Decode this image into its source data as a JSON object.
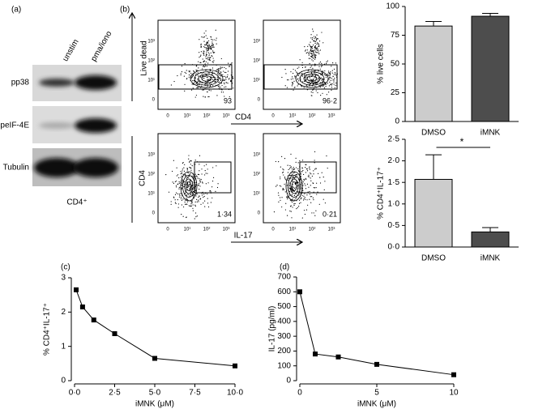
{
  "panel_labels": [
    "(a)",
    "(b)",
    "(c)",
    "(d)"
  ],
  "blot": {
    "lanes": [
      "unstim",
      "pma/iono"
    ],
    "bands": [
      "pp38",
      "peIF-4E",
      "Tubulin"
    ],
    "caption": "CD4⁺"
  },
  "flow": {
    "ticks": [
      "0",
      "10¹",
      "10²",
      "10³"
    ],
    "top_y_label": "Live dead",
    "top_x_label": "CD4",
    "bottom_y_label": "CD4",
    "bottom_x_label": "IL-17",
    "gates": [
      "93",
      "96·2",
      "1·34",
      "0·21"
    ]
  },
  "chart_data": [
    {
      "type": "bar",
      "y_label": "% live cells",
      "categories": [
        "DMSO",
        "iMNK"
      ],
      "values": [
        83,
        91.5
      ],
      "errors": [
        4,
        2.5
      ],
      "colors": [
        "#cccccc",
        "#4d4d4d"
      ],
      "ylim": [
        0,
        100
      ],
      "yticks": [
        0,
        25,
        50,
        75,
        100
      ]
    },
    {
      "type": "bar",
      "y_label": "% CD4⁺IL-17⁺",
      "categories": [
        "DMSO",
        "iMNK"
      ],
      "values": [
        1.57,
        0.35
      ],
      "errors": [
        0.57,
        0.1
      ],
      "colors": [
        "#cccccc",
        "#4d4d4d"
      ],
      "ylim": [
        0,
        2.5
      ],
      "yticks": [
        {
          "value": 0,
          "label": "0·0"
        },
        {
          "value": 0.5,
          "label": "0·5"
        },
        {
          "value": 1,
          "label": "1·0"
        },
        {
          "value": 1.5,
          "label": "1·5"
        },
        {
          "value": 2,
          "label": "2·0"
        },
        {
          "value": 2.5,
          "label": "2·5"
        }
      ],
      "annotation": "*"
    },
    {
      "type": "line",
      "x_label": "iMNK (μM)",
      "y_label": "% CD4⁺IL-17⁺",
      "x": [
        0.1,
        0.5,
        1.2,
        2.5,
        5,
        10
      ],
      "values": [
        2.65,
        2.15,
        1.77,
        1.37,
        0.65,
        0.43
      ],
      "color": "#000000",
      "xlim": [
        0,
        10
      ],
      "xticks": [
        {
          "value": 0,
          "label": "0·0"
        },
        {
          "value": 2.5,
          "label": "2·5"
        },
        {
          "value": 5,
          "label": "5·0"
        },
        {
          "value": 7.5,
          "label": "7·5"
        },
        {
          "value": 10,
          "label": "10·0"
        }
      ],
      "ylim": [
        0,
        3
      ],
      "yticks": [
        0,
        1,
        2,
        3
      ]
    },
    {
      "type": "line",
      "x_label": "iMNK (μM)",
      "y_label": "IL-17 (pg/ml)",
      "x": [
        0,
        1,
        2.5,
        5,
        10
      ],
      "values": [
        600,
        180,
        160,
        110,
        40
      ],
      "color": "#000000",
      "xlim": [
        0,
        10
      ],
      "xticks": [
        0,
        5,
        10
      ],
      "ylim": [
        0,
        700
      ],
      "yticks": [
        0,
        100,
        200,
        300,
        400,
        500,
        600,
        700
      ]
    }
  ]
}
